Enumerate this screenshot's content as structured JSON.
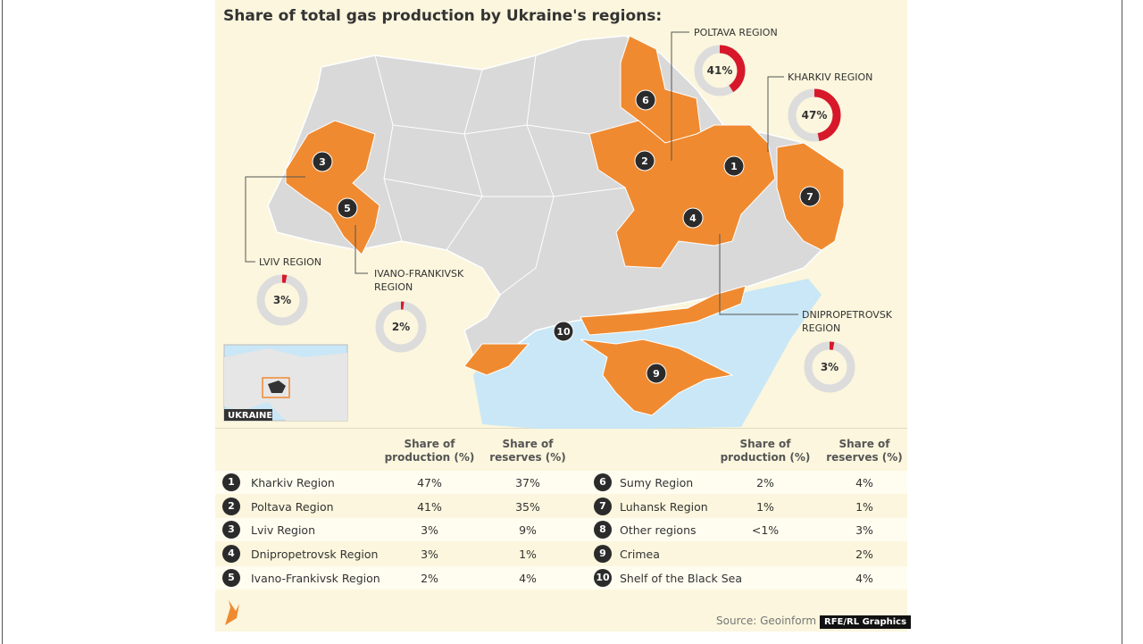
{
  "header": {
    "title": "Share of total gas production by Ukraine's regions:"
  },
  "callouts": [
    {
      "name": "POLTAVA REGION",
      "value": 41,
      "label": "41%"
    },
    {
      "name": "KHARKIV REGION",
      "value": 47,
      "label": "47%"
    },
    {
      "name": "LVIV REGION",
      "value": 3,
      "label": "3%"
    },
    {
      "name": "IVANO-FRANKIVSK REGION",
      "value": 2,
      "label": "2%"
    },
    {
      "name": "DNIPROPETROVSK REGION",
      "value": 3,
      "label": "3%"
    }
  ],
  "inset_label": "UKRAINE",
  "table": {
    "headers": [
      "Share of production (%)",
      "Share of reserves (%)"
    ],
    "rows": [
      [
        "1",
        "Kharkiv Region",
        "47%",
        "37%"
      ],
      [
        "2",
        "Poltava Region",
        "41%",
        "35%"
      ],
      [
        "3",
        "Lviv Region",
        "3%",
        "9%"
      ],
      [
        "4",
        "Dnipropetrovsk Region",
        "3%",
        "1%"
      ],
      [
        "5",
        "Ivano-Frankivsk Region",
        "2%",
        "4%"
      ],
      [
        "6",
        "Sumy Region",
        "2%",
        "4%"
      ],
      [
        "7",
        "Luhansk Region",
        "1%",
        "1%"
      ],
      [
        "8",
        "Other regions",
        "<1%",
        "3%"
      ],
      [
        "9",
        "Crimea",
        null,
        "2%"
      ],
      [
        "10",
        "Shelf of the Black Sea",
        null,
        "4%"
      ]
    ]
  },
  "source": "Source: Geoinform",
  "credit": "RFE/RL Graphics"
}
